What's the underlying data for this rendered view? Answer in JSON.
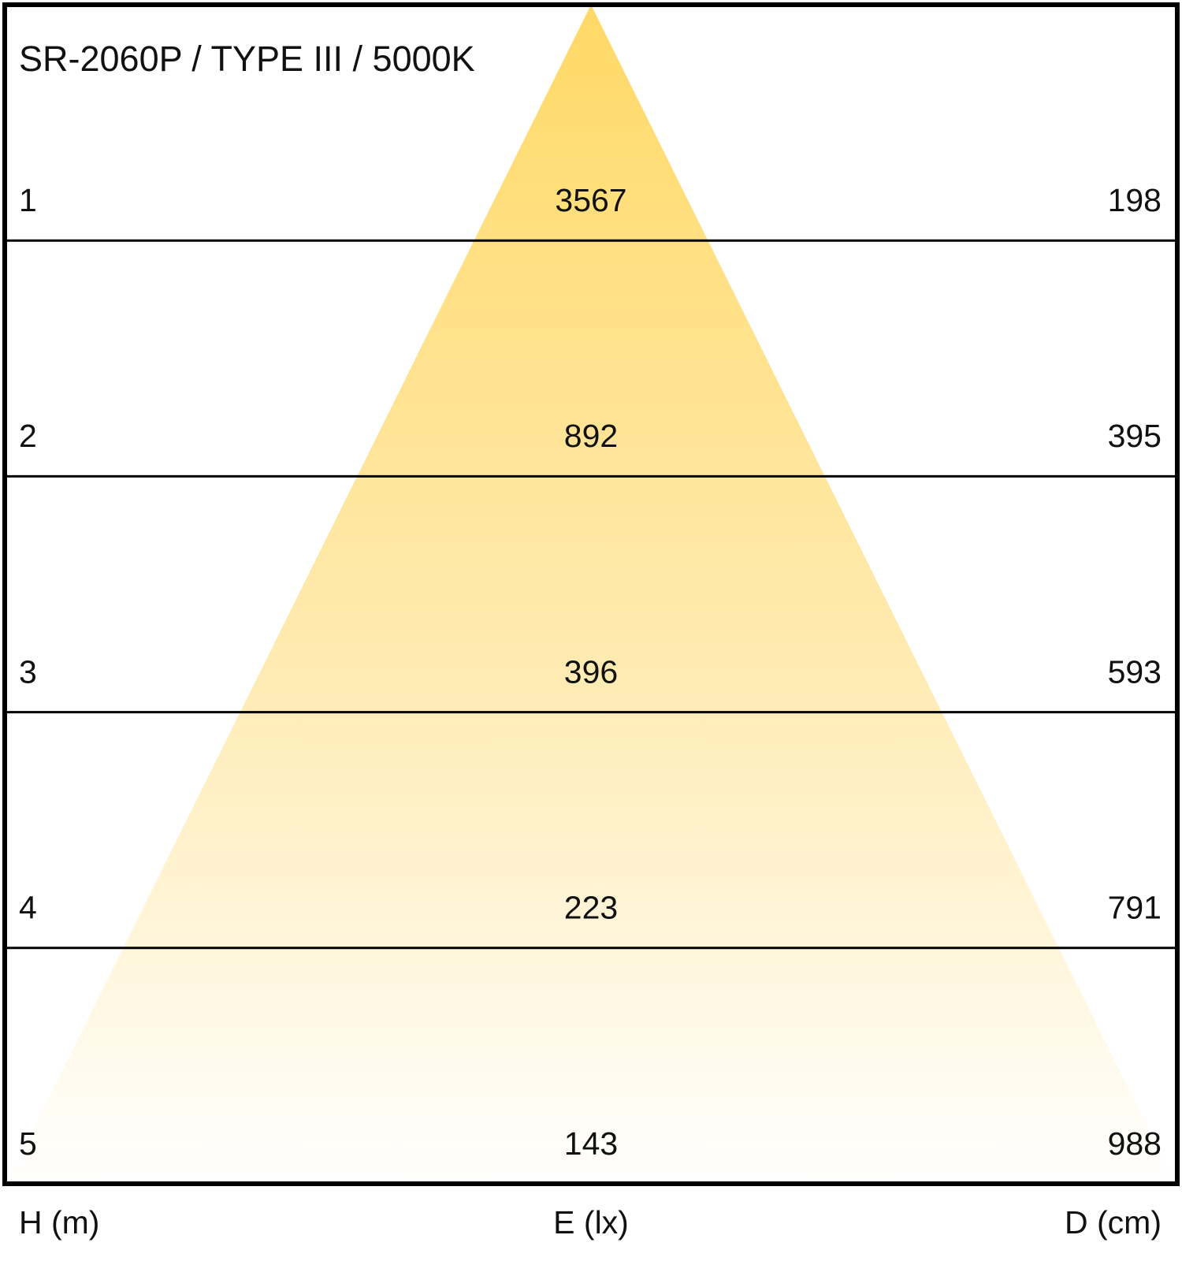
{
  "header": {
    "title": "SR-2060P / TYPE III / 5000K"
  },
  "rows": [
    {
      "height": 1,
      "illuminance": 3567,
      "diameter": 198
    },
    {
      "height": 2,
      "illuminance": 892,
      "diameter": 395
    },
    {
      "height": 3,
      "illuminance": 396,
      "diameter": 593
    },
    {
      "height": 4,
      "illuminance": 223,
      "diameter": 791
    },
    {
      "height": 5,
      "illuminance": 143,
      "diameter": 988
    }
  ],
  "columns": {
    "height": "H (m)",
    "illuminance": "E (lx)",
    "diameter": "D (cm)"
  }
}
